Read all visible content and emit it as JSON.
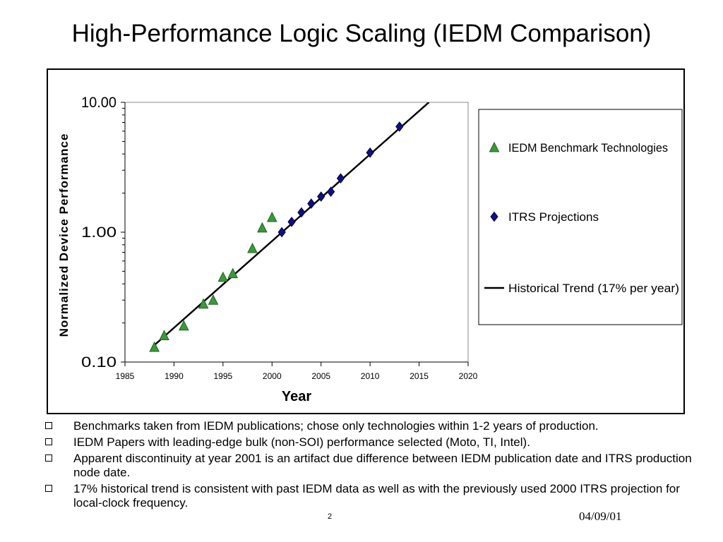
{
  "slide": {
    "title": "High-Performance Logic Scaling (IEDM Comparison)",
    "bullets": [
      "Benchmarks taken from IEDM publications;  chose only technologies within 1-2 years of production.",
      "IEDM Papers with leading-edge bulk (non-SOI) performance selected (Moto, TI, Intel).",
      "Apparent discontinuity at year 2001 is an artifact due difference between IEDM publication date and ITRS production node date.",
      "17% historical trend is consistent with past IEDM data as well as with the previously used 2000 ITRS projection for local-clock frequency."
    ],
    "slide_number": "2",
    "date": "04/09/01"
  },
  "chart_data": {
    "type": "scatter",
    "title": "",
    "xlabel": "Year",
    "ylabel": "Normalized Device Performance",
    "xlim": [
      1985,
      2020
    ],
    "ylim": [
      0.1,
      10
    ],
    "y_scale": "log",
    "x_ticks": [
      "1985",
      "1990",
      "1995",
      "2000",
      "2005",
      "2010",
      "2015",
      "2020"
    ],
    "y_ticks": [
      "0.10",
      "1.00",
      "10.00"
    ],
    "grid": false,
    "legend_position": "right",
    "series": [
      {
        "name": "IEDM Benchmark Technologies",
        "marker": "triangle",
        "color": "#3a9a3a",
        "points": [
          [
            1988,
            0.13
          ],
          [
            1989,
            0.16
          ],
          [
            1991,
            0.19
          ],
          [
            1993,
            0.28
          ],
          [
            1994,
            0.3
          ],
          [
            1995,
            0.45
          ],
          [
            1996,
            0.48
          ],
          [
            1998,
            0.75
          ],
          [
            1999,
            1.08
          ],
          [
            2000,
            1.3
          ]
        ]
      },
      {
        "name": "ITRS Projections",
        "marker": "diamond",
        "color": "#101080",
        "points": [
          [
            2001,
            1.0
          ],
          [
            2002,
            1.2
          ],
          [
            2003,
            1.42
          ],
          [
            2004,
            1.66
          ],
          [
            2005,
            1.88
          ],
          [
            2006,
            2.05
          ],
          [
            2007,
            2.6
          ],
          [
            2010,
            4.1
          ],
          [
            2013,
            6.5
          ]
        ]
      },
      {
        "name": "Historical Trend (17% per year)",
        "marker": "line",
        "color": "#000000",
        "points": [
          [
            1988,
            0.135
          ],
          [
            2016,
            10.0
          ]
        ]
      }
    ]
  }
}
